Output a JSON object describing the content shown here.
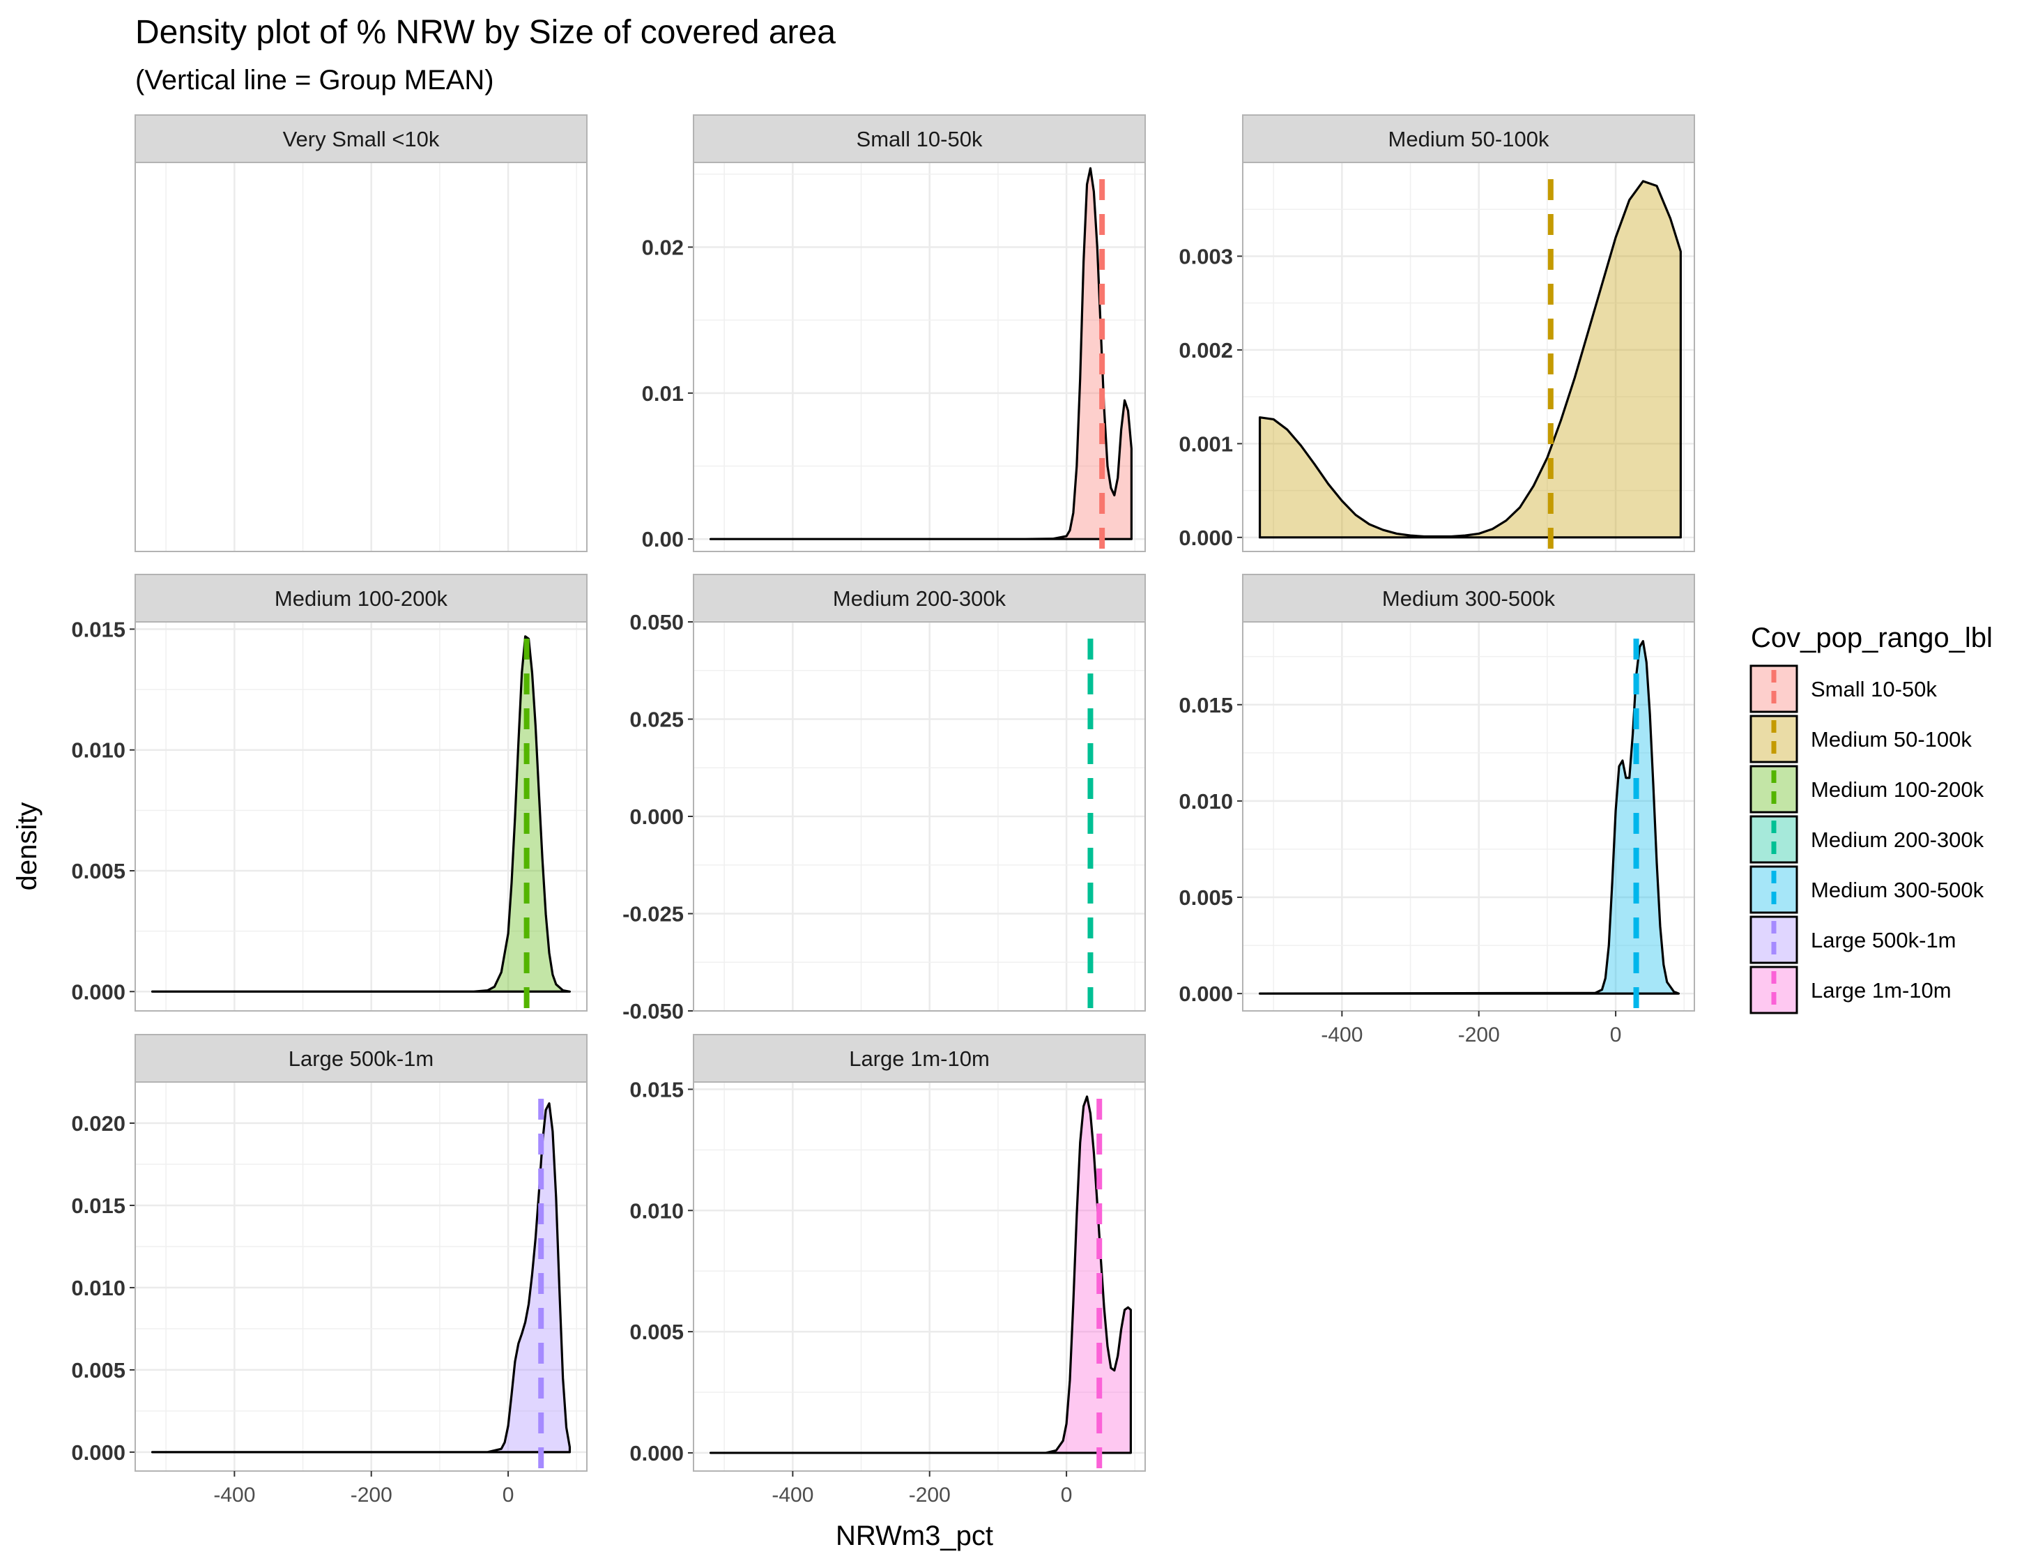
{
  "chart_data": {
    "type": "area",
    "title": "Density plot of % NRW by Size of covered area",
    "subtitle": "(Vertical line = Group MEAN)",
    "xlabel": "NRWm3_pct",
    "ylabel": "density",
    "xlim": [
      -545,
      115
    ],
    "x_ticks": [
      -400,
      -200,
      0
    ],
    "grid": true,
    "legend": {
      "title": "Cov_pop_rango_lbl",
      "position": "right",
      "entries": [
        {
          "label": "Small 10-50k",
          "color": "#F8766D"
        },
        {
          "label": "Medium 50-100k",
          "color": "#C49A00"
        },
        {
          "label": "Medium 100-200k",
          "color": "#53B400"
        },
        {
          "label": "Medium 200-300k",
          "color": "#00C094"
        },
        {
          "label": "Medium 300-500k",
          "color": "#00B6EB"
        },
        {
          "label": "Large 500k-1m",
          "color": "#A58AFF"
        },
        {
          "label": "Large 1m-10m",
          "color": "#FB61D7"
        }
      ]
    },
    "panels": [
      {
        "strip": "Very Small <10k",
        "empty": true,
        "show_x_ticks": false
      },
      {
        "strip": "Small 10-50k",
        "color": "#F8766D",
        "mean": 52,
        "ylim": [
          -0.00085,
          0.0258
        ],
        "y_ticks": [
          0,
          0.01,
          0.02
        ],
        "y_tick_labels": [
          "0.00",
          "0.01",
          "0.02"
        ],
        "show_x_ticks": false,
        "density_x": [
          -520,
          -60,
          -20,
          0,
          5,
          10,
          15,
          20,
          25,
          30,
          35,
          40,
          45,
          50,
          55,
          60,
          65,
          70,
          75,
          80,
          85,
          90,
          95
        ],
        "density_y": [
          0,
          0,
          2e-05,
          0.0002,
          0.0006,
          0.0018,
          0.005,
          0.011,
          0.019,
          0.0243,
          0.0254,
          0.0238,
          0.02,
          0.0145,
          0.009,
          0.005,
          0.0035,
          0.003,
          0.0042,
          0.0075,
          0.0095,
          0.0088,
          0.0062
        ]
      },
      {
        "strip": "Medium 50-100k",
        "color": "#C49A00",
        "mean": -95,
        "ylim": [
          -0.00015,
          0.004
        ],
        "y_ticks": [
          0,
          0.001,
          0.002,
          0.003
        ],
        "y_tick_labels": [
          "0.000",
          "0.001",
          "0.002",
          "0.003"
        ],
        "show_x_ticks": false,
        "density_x": [
          -520,
          -500,
          -480,
          -460,
          -440,
          -420,
          -400,
          -380,
          -360,
          -340,
          -320,
          -300,
          -280,
          -260,
          -240,
          -220,
          -200,
          -180,
          -160,
          -140,
          -120,
          -100,
          -80,
          -60,
          -40,
          -20,
          0,
          20,
          40,
          60,
          80,
          95
        ],
        "density_y": [
          0.00128,
          0.00126,
          0.00115,
          0.00098,
          0.00078,
          0.00057,
          0.00039,
          0.00024,
          0.00014,
          8e-05,
          4e-05,
          2e-05,
          1e-05,
          1e-05,
          1e-05,
          2e-05,
          4e-05,
          9e-05,
          0.00018,
          0.00032,
          0.00055,
          0.00085,
          0.00125,
          0.0017,
          0.0022,
          0.0027,
          0.0032,
          0.0036,
          0.0038,
          0.00375,
          0.0034,
          0.00305
        ]
      },
      {
        "strip": "Medium 100-200k",
        "color": "#53B400",
        "mean": 27,
        "ylim": [
          -0.0008,
          0.0153
        ],
        "y_ticks": [
          0,
          0.005,
          0.01,
          0.015
        ],
        "y_tick_labels": [
          "0.000",
          "0.005",
          "0.010",
          "0.015"
        ],
        "show_x_ticks": false,
        "density_x": [
          -520,
          -50,
          -30,
          -20,
          -10,
          0,
          5,
          10,
          15,
          20,
          25,
          30,
          35,
          40,
          45,
          50,
          55,
          60,
          65,
          70,
          80,
          90
        ],
        "density_y": [
          0,
          0,
          5e-05,
          0.0002,
          0.0008,
          0.0024,
          0.0045,
          0.0072,
          0.0103,
          0.0132,
          0.0147,
          0.0146,
          0.0132,
          0.011,
          0.0082,
          0.0055,
          0.0032,
          0.0016,
          0.0007,
          0.0003,
          5e-05,
          0
        ]
      },
      {
        "strip": "Medium 200-300k",
        "color": "#00C094",
        "mean": 35,
        "no_density": true,
        "ylim": [
          -0.05,
          0.05
        ],
        "y_ticks": [
          -0.05,
          -0.025,
          0,
          0.025,
          0.05
        ],
        "y_tick_labels": [
          "-0.050",
          "-0.025",
          "0.000",
          "0.025",
          "0.050"
        ],
        "show_x_ticks": false
      },
      {
        "strip": "Medium 300-500k",
        "color": "#00B6EB",
        "mean": 30,
        "ylim": [
          -0.0009,
          0.0193
        ],
        "y_ticks": [
          0,
          0.005,
          0.01,
          0.015
        ],
        "y_tick_labels": [
          "0.000",
          "0.005",
          "0.010",
          "0.015"
        ],
        "show_x_ticks": true,
        "density_x": [
          -520,
          -30,
          -20,
          -15,
          -10,
          -5,
          0,
          5,
          10,
          15,
          20,
          25,
          30,
          35,
          40,
          45,
          50,
          55,
          60,
          65,
          70,
          75,
          85,
          92
        ],
        "density_y": [
          0,
          3e-05,
          0.0002,
          0.0008,
          0.0025,
          0.0058,
          0.0095,
          0.0118,
          0.0121,
          0.0112,
          0.0112,
          0.0135,
          0.0165,
          0.018,
          0.0183,
          0.0172,
          0.0145,
          0.0108,
          0.0068,
          0.0035,
          0.0015,
          0.0006,
          0.0001,
          0
        ]
      },
      {
        "strip": "Large 500k-1m",
        "color": "#A58AFF",
        "mean": 48,
        "ylim": [
          -0.00115,
          0.0225
        ],
        "y_ticks": [
          0,
          0.005,
          0.01,
          0.015,
          0.02
        ],
        "y_tick_labels": [
          "0.000",
          "0.005",
          "0.010",
          "0.015",
          "0.020"
        ],
        "show_x_ticks": true,
        "density_x": [
          -520,
          -30,
          -10,
          -5,
          0,
          5,
          10,
          15,
          20,
          25,
          30,
          35,
          40,
          45,
          50,
          55,
          60,
          65,
          70,
          75,
          80,
          85,
          90
        ],
        "density_y": [
          0,
          0,
          0.0002,
          0.0006,
          0.0016,
          0.0035,
          0.0055,
          0.0066,
          0.0072,
          0.0079,
          0.009,
          0.0108,
          0.013,
          0.0158,
          0.0188,
          0.0208,
          0.0212,
          0.0195,
          0.0155,
          0.0098,
          0.0045,
          0.0015,
          0.0003
        ]
      },
      {
        "strip": "Large 1m-10m",
        "color": "#FB61D7",
        "mean": 48,
        "ylim": [
          -0.00075,
          0.0153
        ],
        "y_ticks": [
          0,
          0.005,
          0.01,
          0.015
        ],
        "y_tick_labels": [
          "0.000",
          "0.005",
          "0.010",
          "0.015"
        ],
        "show_x_ticks": true,
        "density_x": [
          -520,
          -30,
          -15,
          -5,
          0,
          5,
          10,
          15,
          20,
          25,
          30,
          35,
          40,
          45,
          50,
          55,
          60,
          65,
          70,
          75,
          80,
          85,
          90,
          94
        ],
        "density_y": [
          0,
          0,
          0.0001,
          0.0005,
          0.0012,
          0.003,
          0.0062,
          0.0098,
          0.0128,
          0.0143,
          0.0147,
          0.014,
          0.0124,
          0.0103,
          0.0081,
          0.006,
          0.0044,
          0.0035,
          0.0034,
          0.004,
          0.0051,
          0.0059,
          0.006,
          0.0059
        ]
      }
    ]
  }
}
